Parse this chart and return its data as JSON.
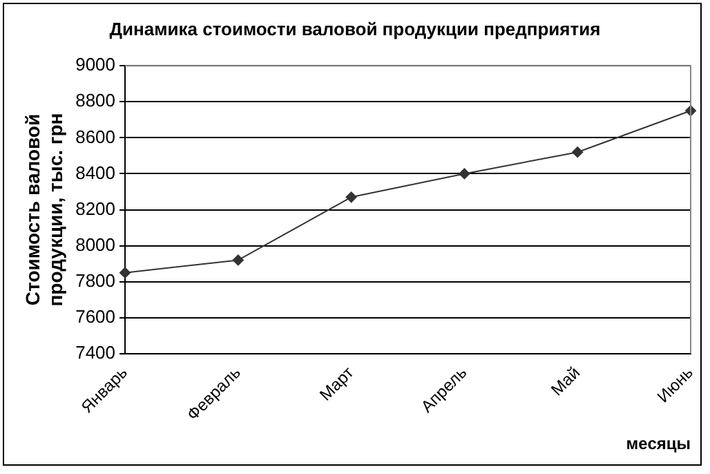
{
  "chart_data": {
    "type": "line",
    "title": "Динамика стоимости валовой продукции предприятия",
    "xlabel": "месяцы",
    "ylabel": "Стоимость валовой продукции, тыс. грн",
    "categories": [
      "Январь",
      "Февраль",
      "Март",
      "Апрель",
      "Май",
      "Июнь"
    ],
    "series": [
      {
        "color": "#333333",
        "values": [
          7850,
          7920,
          8270,
          8400,
          8520,
          8750
        ]
      }
    ],
    "ylim": [
      7400,
      9000
    ],
    "yticks": [
      7400,
      7600,
      7800,
      8000,
      8200,
      8400,
      8600,
      8800,
      9000
    ],
    "grid": "y",
    "legend": false,
    "marker": "diamond",
    "line_style": "solid"
  }
}
